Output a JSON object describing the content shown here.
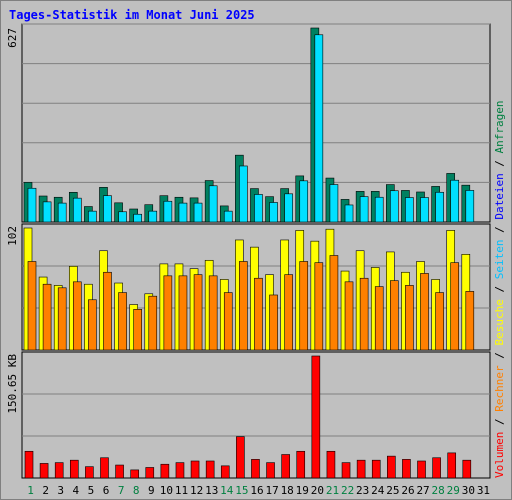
{
  "page": {
    "title": "Tages-Statistik im Monat Juni 2025"
  },
  "colors": {
    "background": "#c0c0c0",
    "title": "#0000ff",
    "axis_max_label": "#000000",
    "weekday_label": "#0000ff",
    "weekend_label": "#008040",
    "anfragen_front": "#00e0ff",
    "anfragen_back": "#008060",
    "besuche_front": "#ffff00",
    "rechner_front": "#ff8000",
    "volumen": "#ff0000",
    "dateien_label": "#0000ff",
    "seiten_label": "#00c0ff",
    "besuche_label": "#ffff00",
    "rechner_label": "#ff8000",
    "volumen_label": "#ff0000",
    "separator": "#000000"
  },
  "chart_data": {
    "type": "bar",
    "title": "Tages-Statistik im Monat Juni 2025",
    "categories": [
      "1",
      "2",
      "3",
      "4",
      "5",
      "6",
      "7",
      "8",
      "9",
      "10",
      "11",
      "12",
      "13",
      "14",
      "15",
      "16",
      "17",
      "18",
      "19",
      "20",
      "21",
      "22",
      "23",
      "24",
      "25",
      "26",
      "27",
      "28",
      "29",
      "30",
      "31"
    ],
    "weekend_days": [
      "1",
      "7",
      "8",
      "14",
      "15",
      "21",
      "22",
      "28",
      "29"
    ],
    "grid": true,
    "panels": [
      {
        "id": "requests",
        "max_label": "627",
        "ylim": [
          0,
          627
        ],
        "series": [
          {
            "name": "Anfragen",
            "values": [
              128,
              84,
              80,
              96,
              50,
              112,
              62,
              42,
              56,
              85,
              80,
              78,
              134,
              52,
              216,
              108,
              82,
              108,
              149,
              627,
              142,
              73,
              99,
              99,
              121,
              102,
              97,
              115,
              157,
              119,
              null
            ]
          },
          {
            "name": "Dateien",
            "values": [
              122,
              78,
              74,
              90,
              48,
              98,
              46,
              38,
              48,
              80,
              74,
              74,
              130,
              48,
              194,
              102,
              76,
              104,
              146,
              618,
              134,
              68,
              95,
              93,
              114,
              92,
              92,
              109,
              148,
              115,
              null
            ]
          }
        ],
        "legend": [
          {
            "name": "Anfragen",
            "color": "#008060"
          },
          {
            "name": "Dateien",
            "color": "#0000ff"
          }
        ]
      },
      {
        "id": "visits",
        "max_label": "102",
        "ylim": [
          0,
          102
        ],
        "series": [
          {
            "name": "Besuche",
            "values": [
              102,
              61,
              54,
              70,
              55,
              83,
              56,
              38,
              47,
              72,
              72,
              68,
              75,
              59,
              92,
              86,
              63,
              92,
              100,
              91,
              101,
              66,
              83,
              69,
              82,
              65,
              74,
              59,
              100,
              80,
              null
            ]
          },
          {
            "name": "Rechner",
            "values": [
              74,
              55,
              52,
              57,
              42,
              65,
              48,
              34,
              45,
              62,
              62,
              63,
              62,
              48,
              74,
              60,
              46,
              63,
              74,
              73,
              79,
              57,
              60,
              53,
              58,
              54,
              64,
              48,
              73,
              49,
              null
            ]
          }
        ],
        "legend": [
          {
            "name": "Seiten",
            "color": "#00c0ff"
          },
          {
            "name": "Besuche",
            "color": "#ffff00"
          },
          {
            "name": "Rechner",
            "color": "#ff8000"
          }
        ]
      },
      {
        "id": "volume",
        "max_label": "150.65 KB",
        "ylim": [
          0,
          150.65
        ],
        "series": [
          {
            "name": "Volumen",
            "values": [
              33,
              18,
              19,
              22,
              14,
              25,
              16,
              10,
              13,
              17,
              19,
              21,
              21,
              15,
              51,
              23,
              19,
              29,
              33,
              150.65,
              33,
              19,
              22,
              22,
              27,
              23,
              21,
              25,
              31,
              22,
              null
            ]
          }
        ],
        "legend": [
          {
            "name": "Volumen",
            "color": "#ff0000"
          }
        ]
      }
    ],
    "right_legend_text": [
      "Volumen",
      "Rechner",
      "Besuche",
      "Seiten",
      "Dateien",
      "Anfragen"
    ]
  }
}
